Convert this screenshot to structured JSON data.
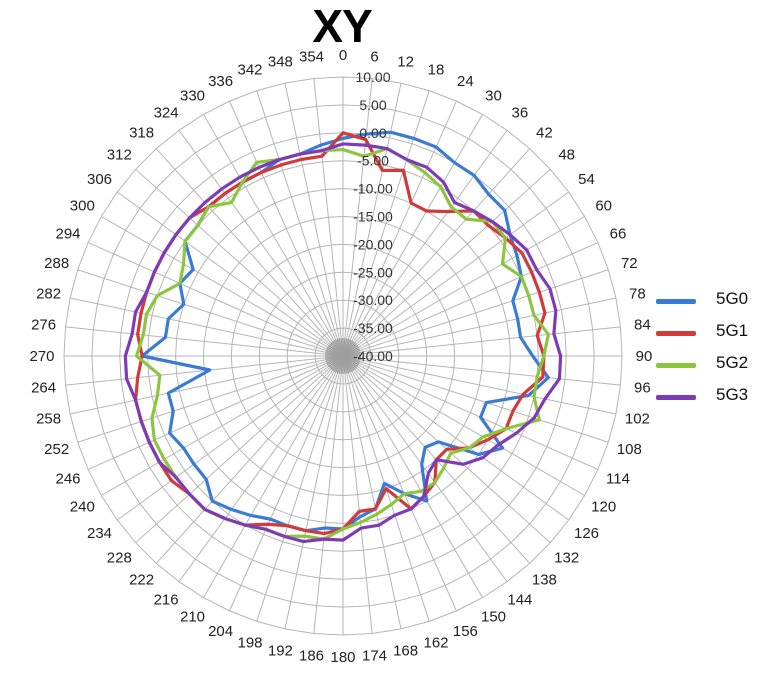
{
  "chart_data": {
    "type": "radar",
    "title": "XY",
    "angle_labels": [
      "0",
      "6",
      "12",
      "18",
      "24",
      "30",
      "36",
      "42",
      "48",
      "54",
      "60",
      "66",
      "72",
      "78",
      "84",
      "90",
      "96",
      "102",
      "108",
      "114",
      "120",
      "126",
      "132",
      "138",
      "144",
      "150",
      "156",
      "162",
      "168",
      "174",
      "180",
      "186",
      "192",
      "198",
      "204",
      "210",
      "216",
      "222",
      "228",
      "234",
      "240",
      "246",
      "252",
      "258",
      "264",
      "270",
      "276",
      "282",
      "288",
      "294",
      "300",
      "306",
      "312",
      "318",
      "324",
      "330",
      "336",
      "342",
      "348",
      "354"
    ],
    "radial_labels": [
      "10.00",
      "5.00",
      "0.00",
      "-5.00",
      "-10.00",
      "-15.00",
      "-20.00",
      "-25.00",
      "-30.00",
      "-35.00",
      "-40.00"
    ],
    "rlim": [
      -40,
      10
    ],
    "series": [
      {
        "name": "5G0",
        "color": "#3a7bd5",
        "values": [
          -1,
          0,
          1,
          1,
          1,
          0,
          0,
          -1,
          -1,
          -3,
          -4,
          -5,
          -8,
          -8,
          -8,
          -6,
          -3,
          -6,
          -13,
          -13,
          -7,
          -10,
          -17,
          -18,
          -16,
          -10,
          -13,
          -16,
          -12,
          -11,
          -9,
          -9,
          -8,
          -8,
          -8,
          -7,
          -6,
          -5,
          -7,
          -7,
          -7,
          -6,
          -8,
          -8,
          -16,
          -4,
          -8,
          -8,
          -10,
          -8,
          -9,
          -5,
          -5,
          -4,
          -4,
          -4,
          -4,
          -3,
          -3,
          -2
        ]
      },
      {
        "name": "5G1",
        "color": "#d23a3a",
        "values": [
          0,
          -1,
          -6,
          -5,
          -10,
          -10,
          -8,
          -5,
          -5,
          -4,
          -3,
          -3,
          -3,
          -3,
          -5,
          -4,
          -4,
          -7,
          -8,
          -8,
          -10,
          -12,
          -15,
          -15,
          -12,
          -11,
          -10,
          -15,
          -12,
          -12,
          -9,
          -8,
          -8,
          -8,
          -7,
          -5,
          -4,
          -3,
          -3,
          -2,
          -2,
          -2,
          -2,
          -2,
          -3,
          -4,
          -3,
          -3,
          -3,
          -3,
          -3,
          -3,
          -3,
          -4,
          -4,
          -4,
          -4,
          -4,
          -4,
          -4
        ]
      },
      {
        "name": "5G2",
        "color": "#8cc63f",
        "values": [
          -3,
          -4,
          -2,
          -3,
          -4,
          -5,
          -7,
          -7,
          -4,
          -4,
          -7,
          -5,
          -5,
          -5,
          -3,
          -4,
          -5,
          -5,
          -3,
          -8,
          -11,
          -12,
          -14,
          -13,
          -12,
          -12,
          -13,
          -12,
          -11,
          -10,
          -9,
          -7,
          -7,
          -6,
          -6,
          -5,
          -4,
          -3,
          -3,
          -3,
          -3,
          -3,
          -4,
          -6,
          -7,
          -3,
          -4,
          -4,
          -5,
          -8,
          -7,
          -5,
          -5,
          -4,
          -6,
          -4,
          -2,
          -3,
          -3,
          -3
        ]
      },
      {
        "name": "5G3",
        "color": "#7d3cb5",
        "values": [
          -2,
          -2,
          -2,
          -3,
          -3,
          -4,
          -6,
          -5,
          -4,
          -3,
          -2,
          -2,
          -1,
          -1,
          -2,
          -1,
          -1,
          -3,
          -4,
          -6,
          -8,
          -9,
          -11,
          -15,
          -14,
          -11,
          -10,
          -10,
          -9,
          -9,
          -7,
          -7,
          -6,
          -6,
          -6,
          -5,
          -4,
          -3,
          -3,
          -3,
          -2,
          -2,
          -2,
          -2,
          -1,
          -1,
          -2,
          -2,
          -3,
          -3,
          -3,
          -3,
          -3,
          -3,
          -3,
          -3,
          -3,
          -3,
          -3,
          -3
        ]
      }
    ],
    "legend_position": "right",
    "grid": true
  }
}
